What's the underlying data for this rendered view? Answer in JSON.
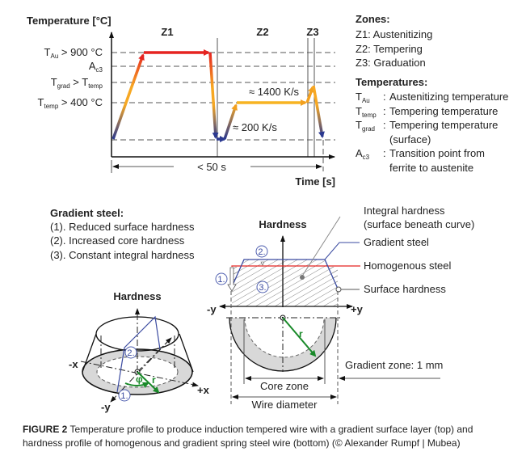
{
  "temperature_chart": {
    "y_axis_label": "Temperature [°C]",
    "x_axis_label": "Time [s]",
    "zones": [
      "Z1",
      "Z2",
      "Z3"
    ],
    "levels": {
      "t_au": {
        "symbol": "T",
        "sub": "Au",
        "rest": " > 900 °C"
      },
      "ac3": {
        "symbol": "A",
        "sub": "c3"
      },
      "t_grad": {
        "symbol": "T",
        "sub": "grad",
        "mid": " > T",
        "sub2": "temp"
      },
      "t_temp": {
        "symbol": "T",
        "sub": "temp",
        "rest": " > 400 °C"
      }
    },
    "rate_high": "≈ 1400 K/s",
    "rate_low": "≈ 200 K/s",
    "duration": "< 50 s",
    "colors": {
      "hot": "#e52421",
      "warm": "#f7a823",
      "cold": "#2b3990"
    }
  },
  "legend": {
    "zones_title": "Zones:",
    "zones": [
      "Z1: Austenitizing",
      "Z2: Tempering",
      "Z3: Graduation"
    ],
    "temps_title": "Temperatures:",
    "temps": [
      {
        "symbol": "T",
        "sub": "Au",
        "text": "Austenitizing temperature"
      },
      {
        "symbol": "T",
        "sub": "temp",
        "text": "Tempering temperature"
      },
      {
        "symbol": "T",
        "sub": "grad",
        "text": "Tempering temperature",
        "text2": "(surface)"
      },
      {
        "symbol": "A",
        "sub": "c3",
        "text": "Transition point from",
        "text2": "ferrite to austenite"
      }
    ],
    "colon": ":"
  },
  "gradient_steel": {
    "title": "Gradient steel:",
    "items": [
      "(1). Reduced surface hardness",
      "(2). Increased core hardness",
      "(3). Constant integral hardness"
    ]
  },
  "cone_diagram": {
    "axis_label": "Hardness",
    "neg_x": "-x",
    "pos_x": "+x",
    "neg_y": "-y",
    "phi": "φ",
    "r": "r",
    "markers": [
      "1.",
      "2."
    ]
  },
  "profile_diagram": {
    "axis_label": "Hardness",
    "neg_y": "-y",
    "pos_y": "+y",
    "r": "r",
    "markers": [
      "1.",
      "2.",
      "3."
    ],
    "integral_hardness": [
      "Integral hardness",
      "(surface beneath curve)"
    ],
    "gradient_steel": "Gradient steel",
    "homogenous_steel": "Homogenous steel",
    "surface_hardness": "Surface hardness",
    "gradient_zone": "Gradient zone: 1 mm",
    "core_zone": "Core zone",
    "wire_diameter": "Wire diameter",
    "colors": {
      "gradient": "#3a4aa0",
      "homogenous": "#e52421",
      "radius": "#1a8a2a"
    }
  },
  "caption": {
    "label": "FIGURE 2",
    "line1": " Temperature profile to produce induction tempered wire with a gradient surface layer (top) and",
    "line2": "hardness profile of homogenous and gradient spring steel wire (bottom) (© Alexander Rumpf | Mubea)"
  }
}
